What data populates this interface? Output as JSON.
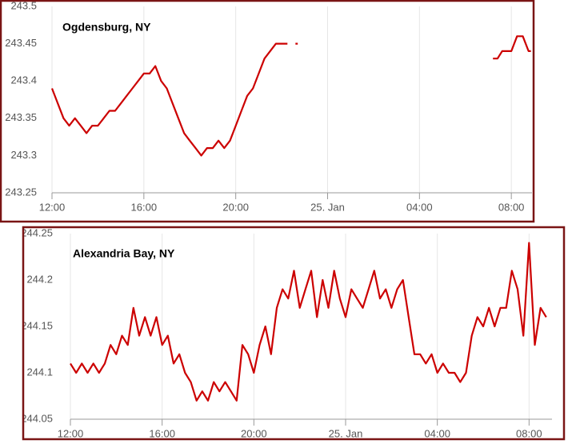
{
  "chart_data": [
    {
      "type": "line",
      "title": "Ogdensburg, NY",
      "color": "#cc0000",
      "x": [
        12.0,
        12.25,
        12.5,
        12.75,
        13.0,
        13.25,
        13.5,
        13.75,
        14.0,
        14.25,
        14.5,
        14.75,
        15.0,
        15.25,
        15.5,
        15.75,
        16.0,
        16.25,
        16.5,
        16.75,
        17.0,
        17.25,
        17.5,
        17.75,
        18.0,
        18.25,
        18.5,
        18.75,
        19.0,
        19.25,
        19.5,
        19.75,
        20.0,
        20.25,
        20.5,
        20.75,
        21.0,
        21.25,
        21.5,
        21.75,
        22.0,
        22.25,
        22.45,
        22.6,
        22.7,
        23.0,
        31.2,
        31.4,
        31.6,
        31.8,
        32.0,
        32.25,
        32.5,
        32.75,
        32.85
      ],
      "values": [
        243.39,
        243.37,
        243.35,
        243.34,
        243.35,
        243.34,
        243.33,
        243.34,
        243.34,
        243.35,
        243.36,
        243.36,
        243.37,
        243.38,
        243.39,
        243.4,
        243.41,
        243.41,
        243.42,
        243.4,
        243.39,
        243.37,
        243.35,
        243.33,
        243.32,
        243.31,
        243.3,
        243.31,
        243.31,
        243.32,
        243.31,
        243.32,
        243.34,
        243.36,
        243.38,
        243.39,
        243.41,
        243.43,
        243.44,
        243.45,
        243.45,
        243.45,
        null,
        243.45,
        243.45,
        null,
        243.43,
        243.43,
        243.44,
        243.44,
        243.44,
        243.46,
        243.46,
        243.44,
        243.44
      ],
      "xlim": [
        12,
        32.9
      ],
      "xticks": [
        {
          "value": 12,
          "label": "12:00"
        },
        {
          "value": 16,
          "label": "16:00"
        },
        {
          "value": 20,
          "label": "20:00"
        },
        {
          "value": 24,
          "label": "25. Jan"
        },
        {
          "value": 28,
          "label": "04:00"
        },
        {
          "value": 32,
          "label": "08:00"
        }
      ],
      "ylim": [
        243.25,
        243.5
      ],
      "yticks": [
        243.25,
        243.3,
        243.35,
        243.4,
        243.45,
        243.5
      ],
      "grid": true
    },
    {
      "type": "line",
      "title": "Alexandria Bay, NY",
      "color": "#cc0000",
      "x": [
        12.0,
        12.25,
        12.5,
        12.75,
        13.0,
        13.25,
        13.5,
        13.75,
        14.0,
        14.25,
        14.5,
        14.75,
        15.0,
        15.25,
        15.5,
        15.75,
        16.0,
        16.25,
        16.5,
        16.75,
        17.0,
        17.25,
        17.5,
        17.75,
        18.0,
        18.25,
        18.5,
        18.75,
        19.0,
        19.25,
        19.5,
        19.75,
        20.0,
        20.25,
        20.5,
        20.75,
        21.0,
        21.25,
        21.5,
        21.75,
        22.0,
        22.25,
        22.5,
        22.75,
        23.0,
        23.25,
        23.5,
        23.75,
        24.0,
        24.25,
        24.5,
        24.75,
        25.0,
        25.25,
        25.5,
        25.75,
        26.0,
        26.25,
        26.5,
        26.75,
        27.0,
        27.25,
        27.5,
        27.75,
        28.0,
        28.25,
        28.5,
        28.75,
        29.0,
        29.25,
        29.5,
        29.75,
        30.0,
        30.25,
        30.5,
        30.75,
        31.0,
        31.25,
        31.5,
        31.75,
        32.0,
        32.25,
        32.5,
        32.75
      ],
      "values": [
        244.11,
        244.1,
        244.11,
        244.1,
        244.11,
        244.1,
        244.11,
        244.13,
        244.12,
        244.14,
        244.13,
        244.17,
        244.14,
        244.16,
        244.14,
        244.16,
        244.13,
        244.14,
        244.11,
        244.12,
        244.1,
        244.09,
        244.07,
        244.08,
        244.07,
        244.09,
        244.08,
        244.09,
        244.08,
        244.07,
        244.13,
        244.12,
        244.1,
        244.13,
        244.15,
        244.12,
        244.17,
        244.19,
        244.18,
        244.21,
        244.17,
        244.19,
        244.21,
        244.16,
        244.2,
        244.17,
        244.21,
        244.18,
        244.16,
        244.19,
        244.18,
        244.17,
        244.19,
        244.21,
        244.18,
        244.19,
        244.17,
        244.19,
        244.2,
        244.16,
        244.12,
        244.12,
        244.11,
        244.12,
        244.1,
        244.11,
        244.1,
        244.1,
        244.09,
        244.1,
        244.14,
        244.16,
        244.15,
        244.17,
        244.15,
        244.17,
        244.17,
        244.21,
        244.19,
        244.14,
        244.24,
        244.13,
        244.17,
        244.16
      ],
      "xlim": [
        12,
        33
      ],
      "xticks": [
        {
          "value": 12,
          "label": "12:00"
        },
        {
          "value": 16,
          "label": "16:00"
        },
        {
          "value": 20,
          "label": "20:00"
        },
        {
          "value": 24,
          "label": "25. Jan"
        },
        {
          "value": 28,
          "label": "04:00"
        },
        {
          "value": 32,
          "label": "08:00"
        }
      ],
      "ylim": [
        244.05,
        244.25
      ],
      "yticks": [
        244.05,
        244.1,
        244.15,
        244.2,
        244.25
      ],
      "grid": true
    }
  ]
}
